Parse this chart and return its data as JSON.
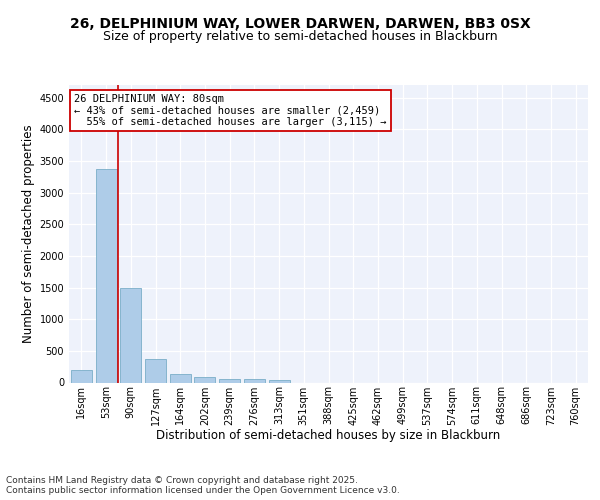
{
  "title_line1": "26, DELPHINIUM WAY, LOWER DARWEN, DARWEN, BB3 0SX",
  "title_line2": "Size of property relative to semi-detached houses in Blackburn",
  "xlabel": "Distribution of semi-detached houses by size in Blackburn",
  "ylabel": "Number of semi-detached properties",
  "categories": [
    "16sqm",
    "53sqm",
    "90sqm",
    "127sqm",
    "164sqm",
    "202sqm",
    "239sqm",
    "276sqm",
    "313sqm",
    "351sqm",
    "388sqm",
    "425sqm",
    "462sqm",
    "499sqm",
    "537sqm",
    "574sqm",
    "611sqm",
    "648sqm",
    "686sqm",
    "723sqm",
    "760sqm"
  ],
  "values": [
    190,
    3370,
    1500,
    370,
    140,
    80,
    55,
    55,
    40,
    0,
    0,
    0,
    0,
    0,
    0,
    0,
    0,
    0,
    0,
    0,
    0
  ],
  "bar_color": "#aecce8",
  "bar_edge_color": "#7aaec8",
  "vline_x": 1.5,
  "vline_color": "#cc0000",
  "annotation_line1": "26 DELPHINIUM WAY: 80sqm",
  "annotation_line2": "← 43% of semi-detached houses are smaller (2,459)",
  "annotation_line3": "  55% of semi-detached houses are larger (3,115) →",
  "annotation_box_color": "#ffffff",
  "annotation_box_edge": "#cc0000",
  "ylim": [
    0,
    4700
  ],
  "yticks": [
    0,
    500,
    1000,
    1500,
    2000,
    2500,
    3000,
    3500,
    4000,
    4500
  ],
  "bg_color": "#eef2fb",
  "footer_text": "Contains HM Land Registry data © Crown copyright and database right 2025.\nContains public sector information licensed under the Open Government Licence v3.0.",
  "title_fontsize": 10,
  "subtitle_fontsize": 9,
  "axis_label_fontsize": 8.5,
  "tick_fontsize": 7,
  "footer_fontsize": 6.5,
  "annotation_fontsize": 7.5
}
